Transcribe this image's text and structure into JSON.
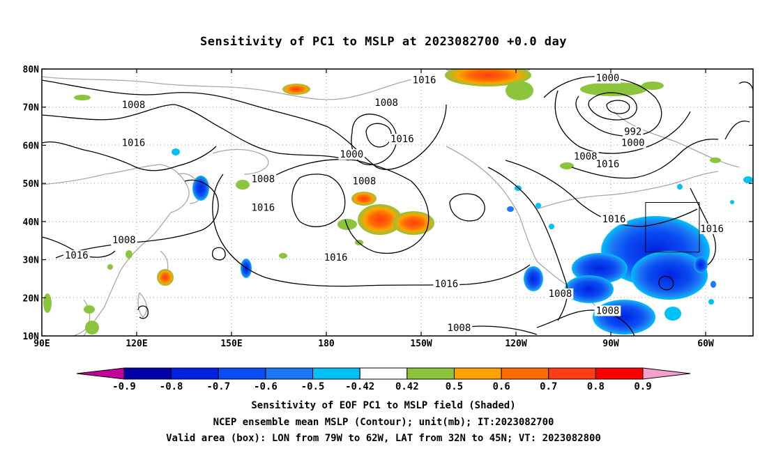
{
  "title": "Sensitivity of PC1 to MSLP at 2023082700 +0.0 day",
  "lat_ticks": [
    {
      "value": 80,
      "label": "80N"
    },
    {
      "value": 70,
      "label": "70N"
    },
    {
      "value": 60,
      "label": "60N"
    },
    {
      "value": 50,
      "label": "50N"
    },
    {
      "value": 40,
      "label": "40N"
    },
    {
      "value": 30,
      "label": "30N"
    },
    {
      "value": 20,
      "label": "20N"
    },
    {
      "value": 10,
      "label": "10N"
    }
  ],
  "lon_ticks": [
    {
      "value": 90,
      "label": "90E"
    },
    {
      "value": 120,
      "label": "120E"
    },
    {
      "value": 150,
      "label": "150E"
    },
    {
      "value": 180,
      "label": "180"
    },
    {
      "value": 210,
      "label": "150W"
    },
    {
      "value": 240,
      "label": "120W"
    },
    {
      "value": 270,
      "label": "90W"
    },
    {
      "value": 300,
      "label": "60W"
    }
  ],
  "map_extent": {
    "lon_min": 90,
    "lon_max": 315,
    "lat_min": 10,
    "lat_max": 80
  },
  "contour_labels": [
    {
      "text": "1016",
      "lon": 211,
      "lat": 77
    },
    {
      "text": "1000",
      "lon": 269,
      "lat": 77.5
    },
    {
      "text": "1008",
      "lon": 119,
      "lat": 70.5
    },
    {
      "text": "1008",
      "lon": 199,
      "lat": 71
    },
    {
      "text": "992",
      "lon": 277,
      "lat": 63.5
    },
    {
      "text": "1000",
      "lon": 277,
      "lat": 60.5
    },
    {
      "text": "1016",
      "lon": 119,
      "lat": 60.5
    },
    {
      "text": "1016",
      "lon": 204,
      "lat": 61.5
    },
    {
      "text": "1000",
      "lon": 188,
      "lat": 57.5
    },
    {
      "text": "1008",
      "lon": 262,
      "lat": 57
    },
    {
      "text": "1016",
      "lon": 269,
      "lat": 55
    },
    {
      "text": "1008",
      "lon": 160,
      "lat": 51
    },
    {
      "text": "1008",
      "lon": 192,
      "lat": 50.5
    },
    {
      "text": "1016",
      "lon": 160,
      "lat": 43.5
    },
    {
      "text": "1016",
      "lon": 271,
      "lat": 40.5
    },
    {
      "text": "1016",
      "lon": 302,
      "lat": 38
    },
    {
      "text": "1008",
      "lon": 116,
      "lat": 35
    },
    {
      "text": "1016",
      "lon": 101,
      "lat": 31
    },
    {
      "text": "1016",
      "lon": 183,
      "lat": 30.5
    },
    {
      "text": "1016",
      "lon": 218,
      "lat": 23.5
    },
    {
      "text": "1008",
      "lon": 254,
      "lat": 21
    },
    {
      "text": "1008",
      "lon": 269,
      "lat": 16.5
    },
    {
      "text": "1008",
      "lon": 222,
      "lat": 12
    }
  ],
  "valid_box": {
    "lon_min": 281,
    "lon_max": 298,
    "lat_min": 32,
    "lat_max": 45
  },
  "colorbar": {
    "colors": [
      "#c2009a",
      "#0000a8",
      "#0022e0",
      "#0a4df2",
      "#1e78f5",
      "#00c0f8",
      "#ffffff",
      "#8cc43c",
      "#ffa300",
      "#ff6d00",
      "#ff3c14",
      "#ff0000",
      "#f5a0c8"
    ],
    "labels": [
      "-0.9",
      "-0.8",
      "-0.7",
      "-0.6",
      "-0.5",
      "-0.42",
      "0.42",
      "0.5",
      "0.6",
      "0.7",
      "0.8",
      "0.9"
    ]
  },
  "captions": {
    "line1": "Sensitivity of EOF PC1 to MSLP field (Shaded)",
    "line2": "NCEP ensemble mean MSLP (Contour); unit(mb); IT:2023082700",
    "line3": "Valid area (box): LON from 79W to 62W, LAT from 32N to 45N; VT: 2023082800"
  }
}
